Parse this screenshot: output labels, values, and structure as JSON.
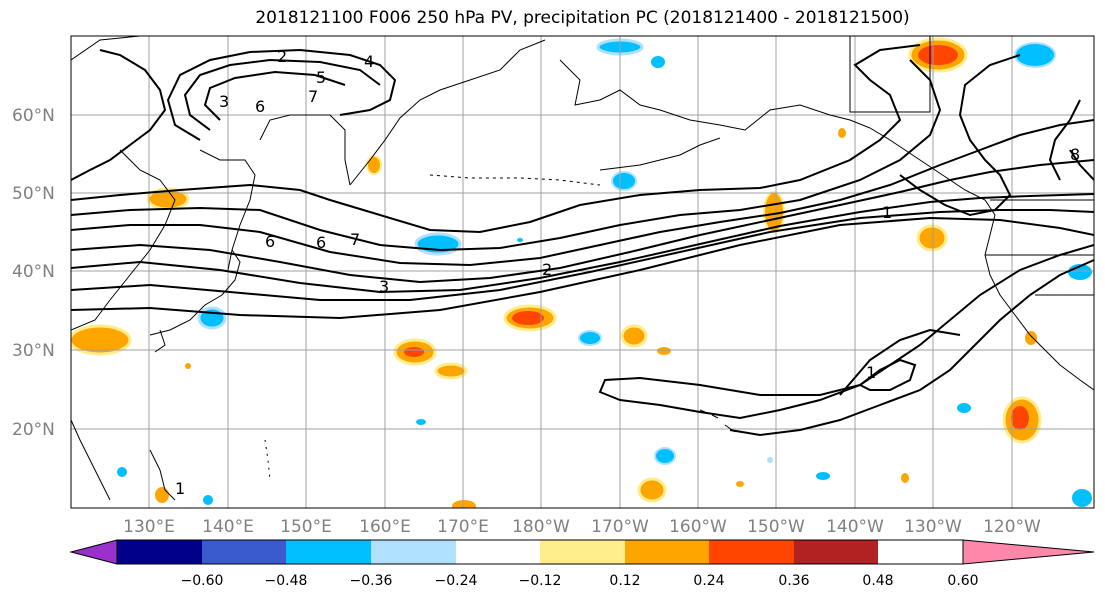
{
  "title": "2018121100 F006 250 hPa PV, precipitation PC (2018121400 - 2018121500)",
  "latitude_labels": [
    "60°N",
    "50°N",
    "40°N",
    "30°N",
    "20°N"
  ],
  "longitude_labels": [
    "130°E",
    "140°E",
    "150°E",
    "160°E",
    "170°E",
    "180°W",
    "170°W",
    "160°W",
    "150°W",
    "140°W",
    "130°W",
    "120°W"
  ],
  "contour_labels": [
    "2",
    "4",
    "5",
    "7",
    "3",
    "6",
    "6",
    "7",
    "6",
    "2",
    "3",
    "1",
    "1",
    "8",
    "1"
  ],
  "colorbar": {
    "tick_labels": [
      "−0.60",
      "−0.48",
      "−0.36",
      "−0.24",
      "−0.12",
      "0.12",
      "0.24",
      "0.36",
      "0.48",
      "0.60"
    ],
    "colors": [
      "#9932cc",
      "#00008b",
      "#3a5bcd",
      "#00bfff",
      "#b0e0ff",
      "#ffffff",
      "#ffec8b",
      "#ffa500",
      "#ff4500",
      "#b22222",
      "#ff88aa"
    ]
  },
  "colors": {
    "grid": "#a0a0a0",
    "coast": "#000000",
    "pv_contour": "#000000",
    "frame": "#000000"
  }
}
